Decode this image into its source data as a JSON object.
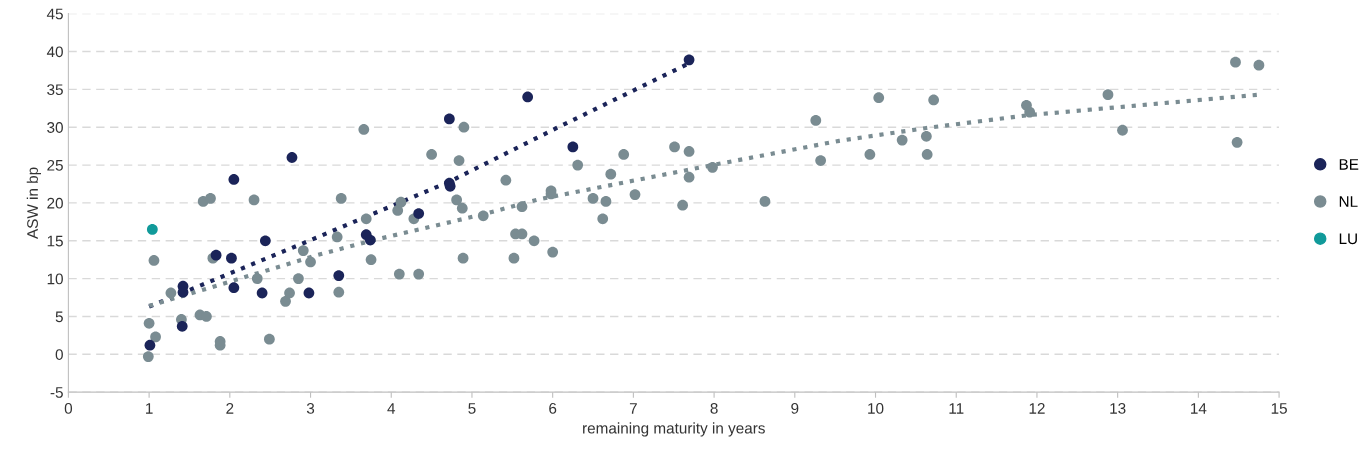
{
  "chart_data": {
    "type": "scatter",
    "xlabel": "remaining maturity in years",
    "ylabel": "ASW in bp",
    "xlim": [
      0,
      15
    ],
    "xticks": [
      0,
      1,
      2,
      3,
      4,
      5,
      6,
      7,
      8,
      9,
      10,
      11,
      12,
      13,
      14,
      15
    ],
    "ylim": [
      -5,
      45
    ],
    "yticks": [
      -5,
      0,
      5,
      10,
      15,
      20,
      25,
      30,
      35,
      40,
      45
    ],
    "grid": "y",
    "legend": "right",
    "marker": "circle",
    "series": [
      {
        "name": "BE",
        "color": "#1b2459",
        "x": [
          1.01,
          1.42,
          1.42,
          1.41,
          1.83,
          2.02,
          2.05,
          2.05,
          2.4,
          2.44,
          2.77,
          2.98,
          3.35,
          3.69,
          3.74,
          4.34,
          4.72,
          4.72,
          4.73,
          5.69,
          6.25,
          7.69
        ],
        "values": [
          1.2,
          9.0,
          8.2,
          3.7,
          13.1,
          12.7,
          23.1,
          8.8,
          8.1,
          15.0,
          26.0,
          8.1,
          10.4,
          15.8,
          15.1,
          18.6,
          31.1,
          22.6,
          22.2,
          34.0,
          27.4,
          38.9
        ]
      },
      {
        "name": "NL",
        "color": "#7a8c92",
        "x": [
          1.06,
          1.0,
          1.08,
          0.99,
          1.27,
          1.4,
          1.67,
          1.76,
          1.63,
          1.71,
          1.79,
          1.88,
          1.88,
          2.3,
          2.34,
          2.49,
          2.69,
          2.74,
          2.85,
          2.91,
          3.0,
          3.35,
          3.33,
          3.38,
          3.66,
          3.69,
          3.75,
          4.08,
          4.12,
          4.1,
          4.34,
          4.28,
          4.5,
          4.9,
          4.84,
          4.81,
          4.88,
          4.89,
          5.14,
          5.42,
          5.54,
          5.62,
          5.52,
          5.62,
          5.77,
          5.98,
          5.98,
          6.0,
          6.31,
          6.5,
          6.66,
          6.62,
          6.72,
          6.88,
          7.02,
          7.51,
          7.69,
          7.69,
          7.61,
          7.98,
          8.63,
          9.26,
          9.32,
          10.04,
          9.93,
          10.33,
          10.63,
          10.64,
          10.72,
          11.87,
          11.91,
          12.88,
          13.06,
          14.46,
          14.75,
          14.48
        ],
        "values": [
          12.4,
          4.1,
          2.3,
          -0.3,
          8.1,
          4.6,
          20.2,
          20.6,
          5.2,
          5.0,
          12.7,
          1.7,
          1.2,
          20.4,
          10.0,
          2.0,
          7.0,
          8.1,
          10.0,
          13.7,
          12.2,
          8.2,
          15.5,
          20.6,
          29.7,
          17.9,
          12.5,
          19.0,
          20.1,
          10.6,
          10.6,
          17.9,
          26.4,
          30.0,
          25.6,
          20.4,
          19.3,
          12.7,
          18.3,
          23.0,
          15.9,
          15.9,
          12.7,
          19.5,
          15.0,
          21.6,
          21.2,
          13.5,
          25.0,
          20.6,
          20.2,
          17.9,
          23.8,
          26.4,
          21.1,
          27.4,
          26.8,
          23.4,
          19.7,
          24.7,
          20.2,
          30.9,
          25.6,
          33.9,
          26.4,
          28.3,
          28.8,
          26.4,
          33.6,
          32.9,
          32.0,
          34.3,
          29.6,
          38.6,
          38.2,
          28.0
        ]
      },
      {
        "name": "LU",
        "color": "#119a9a",
        "x": [
          1.04
        ],
        "values": [
          16.5
        ]
      },
      {
        "type": "line",
        "line_style": "dotted",
        "marker": "none",
        "color": "#1b2459",
        "x": [
          1.0,
          2.87,
          4.72,
          6.05,
          7.7
        ],
        "values": [
          6.3,
          14.5,
          22.8,
          29.9,
          38.5
        ]
      },
      {
        "type": "line",
        "line_style": "dotted",
        "marker": "none",
        "color": "#7a8c92",
        "x": [
          1.0,
          1.88,
          3.08,
          3.75,
          5.14,
          5.84,
          7.98,
          9.55,
          10.63,
          11.9,
          14.75
        ],
        "values": [
          6.4,
          9.2,
          13.1,
          15.0,
          18.5,
          20.5,
          25.0,
          28.2,
          29.9,
          31.6,
          34.3
        ]
      }
    ]
  }
}
